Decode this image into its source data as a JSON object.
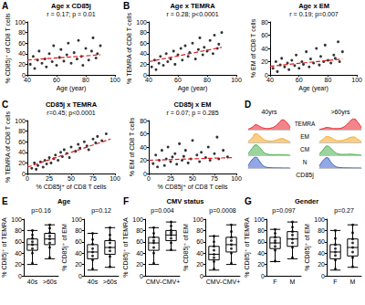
{
  "chart_data": [
    {
      "type": "scatter",
      "panel": "A",
      "title": "Age x CD85j",
      "subtitle": "r = 0.17; p = 0.01",
      "x_label": "Age (year)",
      "y_label": "% CD85j⁺ of CD8 T cells",
      "xlim": [
        40,
        100
      ],
      "xticks": [
        40,
        60,
        80,
        100
      ],
      "ylim": [
        0,
        100
      ],
      "yticks": [
        0,
        20,
        40,
        60,
        80,
        100
      ],
      "grid": false,
      "color": "#000000",
      "x": [
        42,
        44,
        45,
        47,
        48,
        50,
        52,
        53,
        55,
        57,
        58,
        60,
        62,
        63,
        65,
        67,
        68,
        70,
        72,
        74,
        75,
        77,
        78,
        80,
        82,
        84,
        85,
        87,
        88,
        90
      ],
      "values": [
        20,
        35,
        12,
        28,
        45,
        22,
        30,
        15,
        40,
        25,
        55,
        18,
        33,
        48,
        26,
        38,
        60,
        22,
        42,
        30,
        65,
        35,
        18,
        50,
        28,
        45,
        70,
        32,
        40,
        55
      ],
      "fit": {
        "x": [
          40,
          90
        ],
        "y": [
          28,
          38
        ],
        "color": "#e31a1c",
        "line_style": "dashed"
      }
    },
    {
      "type": "scatter",
      "panel": "B",
      "title": "Age x TEMRA",
      "subtitle": "r = 0.28; p<0.0001",
      "x_label": "Age (year)",
      "y_label": "% TEMRA of CD8 T cells",
      "xlim": [
        40,
        100
      ],
      "xticks": [
        40,
        60,
        80,
        100
      ],
      "ylim": [
        0,
        100
      ],
      "yticks": [
        0,
        20,
        40,
        60,
        80,
        100
      ],
      "grid": false,
      "color": "#000000",
      "x": [
        42,
        44,
        45,
        47,
        48,
        50,
        52,
        53,
        55,
        57,
        58,
        60,
        62,
        63,
        65,
        67,
        68,
        70,
        72,
        74,
        75,
        77,
        78,
        80,
        82,
        84,
        85,
        87,
        88,
        90
      ],
      "values": [
        15,
        28,
        10,
        22,
        35,
        18,
        40,
        25,
        30,
        45,
        20,
        38,
        50,
        28,
        55,
        35,
        42,
        60,
        30,
        48,
        70,
        38,
        52,
        45,
        65,
        40,
        75,
        50,
        58,
        80
      ],
      "fit": {
        "x": [
          40,
          90
        ],
        "y": [
          25,
          52
        ],
        "color": "#e31a1c",
        "line_style": "dashed"
      }
    },
    {
      "type": "scatter",
      "title": "Age x EM",
      "subtitle": "r = 0.19; p=0.007",
      "x_label": "Age (year)",
      "y_label": "% EM of CD8 T cells",
      "xlim": [
        40,
        100
      ],
      "xticks": [
        40,
        60,
        80,
        100
      ],
      "ylim": [
        0,
        80
      ],
      "yticks": [
        0,
        20,
        40,
        60,
        80
      ],
      "grid": false,
      "color": "#000000",
      "x": [
        42,
        44,
        45,
        47,
        48,
        50,
        52,
        53,
        55,
        57,
        58,
        60,
        62,
        63,
        65,
        67,
        68,
        70,
        72,
        74,
        75,
        77,
        78,
        80,
        82,
        84,
        85,
        87,
        88,
        90
      ],
      "values": [
        10,
        20,
        5,
        15,
        25,
        12,
        18,
        8,
        22,
        14,
        30,
        10,
        20,
        16,
        35,
        12,
        24,
        18,
        40,
        15,
        28,
        20,
        45,
        22,
        18,
        30,
        25,
        50,
        20,
        35
      ],
      "fit": {
        "x": [
          40,
          90
        ],
        "y": [
          13,
          24
        ],
        "color": "#e31a1c",
        "line_style": "dashed"
      }
    },
    {
      "type": "scatter",
      "panel": "C",
      "title": "CD85j x TEMRA",
      "subtitle": "r=0.45; p<0.0001",
      "x_label": "% CD85j⁺ of CD8 T cells",
      "y_label": "% TEMRA of CD8 T cells",
      "xlim": [
        0,
        100
      ],
      "xticks": [
        0,
        25,
        50,
        75,
        100
      ],
      "ylim": [
        0,
        100
      ],
      "yticks": [
        0,
        20,
        40,
        60,
        80,
        100
      ],
      "grid": false,
      "color": "#000000",
      "x": [
        5,
        8,
        10,
        12,
        15,
        18,
        20,
        22,
        25,
        27,
        30,
        32,
        35,
        38,
        40,
        42,
        45,
        48,
        50,
        55,
        58,
        60,
        65,
        68,
        70,
        75,
        78,
        80,
        85,
        90
      ],
      "values": [
        10,
        20,
        8,
        15,
        22,
        12,
        25,
        18,
        30,
        20,
        28,
        35,
        25,
        40,
        32,
        45,
        38,
        30,
        50,
        42,
        55,
        48,
        60,
        52,
        45,
        65,
        58,
        70,
        62,
        75
      ],
      "fit": {
        "x": [
          0,
          95
        ],
        "y": [
          12,
          65
        ],
        "color": "#e31a1c",
        "line_style": "dashed"
      }
    },
    {
      "type": "scatter",
      "title": "CD85j x EM",
      "subtitle": "r = 0.07; p = 0.285",
      "x_label": "% CD85j⁺ of CD8 T cells",
      "y_label": "% EM of CD8 T cells",
      "xlim": [
        0,
        100
      ],
      "xticks": [
        0,
        25,
        50,
        75,
        100
      ],
      "ylim": [
        0,
        80
      ],
      "yticks": [
        0,
        20,
        40,
        60,
        80
      ],
      "grid": false,
      "color": "#000000",
      "x": [
        5,
        8,
        10,
        12,
        15,
        18,
        20,
        22,
        25,
        27,
        30,
        32,
        35,
        38,
        40,
        42,
        45,
        48,
        50,
        55,
        58,
        60,
        65,
        68,
        70,
        75,
        78,
        80,
        85,
        90
      ],
      "values": [
        15,
        28,
        10,
        20,
        35,
        12,
        22,
        40,
        18,
        25,
        30,
        14,
        45,
        20,
        26,
        35,
        16,
        22,
        50,
        28,
        18,
        32,
        24,
        40,
        20,
        30,
        55,
        22,
        35,
        25
      ],
      "fit": {
        "x": [
          0,
          95
        ],
        "y": [
          20,
          24
        ],
        "color": "#e31a1c",
        "line_style": "dashed"
      }
    },
    {
      "type": "line",
      "panel": "D",
      "x_label": "CD85j",
      "tick_labels": false,
      "grid": false,
      "ylim": [
        0,
        100
      ],
      "categories": [
        null,
        null,
        null,
        null,
        null,
        null,
        null,
        null,
        null,
        null,
        null,
        null
      ],
      "subplots": [
        {
          "title": "40yrs",
          "series": [
            {
              "name": "TEMRA",
              "color": "#e8202a",
              "values": [
                5,
                20,
                45,
                30,
                15,
                10,
                15,
                30,
                60,
                90,
                70,
                20
              ]
            },
            {
              "name": "EM",
              "color": "#f5a623",
              "values": [
                10,
                40,
                80,
                60,
                30,
                15,
                12,
                18,
                30,
                35,
                20,
                5
              ]
            },
            {
              "name": "CM",
              "color": "#4caf50",
              "values": [
                15,
                60,
                95,
                70,
                30,
                10,
                5,
                5,
                6,
                5,
                3,
                1
              ]
            },
            {
              "name": "N",
              "color": "#3a5fcd",
              "values": [
                20,
                75,
                100,
                60,
                20,
                6,
                3,
                2,
                2,
                1,
                1,
                0
              ]
            }
          ]
        },
        {
          "title": ">60yrs",
          "series": [
            {
              "name": "TEMRA",
              "color": "#e8202a",
              "values": [
                3,
                10,
                20,
                15,
                10,
                10,
                18,
                40,
                75,
                100,
                70,
                20
              ]
            },
            {
              "name": "EM",
              "color": "#f5a623",
              "values": [
                8,
                30,
                55,
                45,
                25,
                15,
                18,
                30,
                45,
                50,
                30,
                8
              ]
            },
            {
              "name": "CM",
              "color": "#4caf50",
              "values": [
                12,
                50,
                85,
                65,
                30,
                12,
                8,
                8,
                10,
                8,
                4,
                1
              ]
            },
            {
              "name": "N",
              "color": "#3a5fcd",
              "values": [
                18,
                70,
                95,
                55,
                20,
                6,
                3,
                2,
                2,
                1,
                1,
                0
              ]
            }
          ]
        }
      ]
    },
    {
      "type": "boxplot",
      "panel": "E",
      "title": "Age",
      "categories": [
        "40s",
        ">60s"
      ],
      "ylim": [
        0,
        100
      ],
      "yticks": [
        0,
        20,
        40,
        60,
        80,
        100
      ],
      "grid": false,
      "color": "#000000",
      "subplots": [
        {
          "subtitle": "p=0.16",
          "y_label": "% CD85j⁺ of TEMRA",
          "boxes": [
            [
              20,
              45,
              55,
              65,
              80
            ],
            [
              30,
              55,
              65,
              75,
              90
            ]
          ],
          "points": [
            [
              22,
              40,
              48,
              55,
              60,
              66,
              72,
              80
            ],
            [
              32,
              50,
              58,
              65,
              70,
              76,
              84,
              90
            ]
          ]
        },
        {
          "subtitle": "p=0.12",
          "y_label": "% CD85j⁺ of EM",
          "boxes": [
            [
              10,
              30,
              42,
              55,
              75
            ],
            [
              15,
              38,
              50,
              62,
              85
            ]
          ],
          "points": [
            [
              12,
              28,
              35,
              42,
              48,
              56,
              64,
              75
            ],
            [
              16,
              34,
              44,
              50,
              58,
              64,
              72,
              85
            ]
          ]
        }
      ]
    },
    {
      "type": "boxplot",
      "panel": "F",
      "title": "CMV status",
      "categories": [
        "CMV-",
        "CMV+"
      ],
      "ylim": [
        0,
        100
      ],
      "yticks": [
        0,
        20,
        40,
        60,
        80,
        100
      ],
      "grid": false,
      "color": "#000000",
      "subplots": [
        {
          "subtitle": "p=0.004",
          "y_label": "% CD85j⁺ of TEMRA",
          "boxes": [
            [
              20,
              45,
              58,
              68,
              85
            ],
            [
              45,
              62,
              72,
              80,
              95
            ]
          ],
          "points": [
            [
              22,
              40,
              50,
              58,
              62,
              68,
              75,
              85
            ],
            [
              46,
              58,
              66,
              72,
              76,
              80,
              88,
              95
            ]
          ]
        },
        {
          "subtitle": "p=0.0008",
          "y_label": "% CD85j⁺ of EM",
          "boxes": [
            [
              10,
              28,
              38,
              52,
              70
            ],
            [
              20,
              42,
              55,
              68,
              90
            ]
          ],
          "points": [
            [
              12,
              25,
              32,
              38,
              45,
              52,
              60,
              70
            ],
            [
              22,
              40,
              48,
              55,
              62,
              68,
              78,
              90
            ]
          ]
        }
      ]
    },
    {
      "type": "boxplot",
      "panel": "G",
      "title": "Gender",
      "categories": [
        "F",
        "M"
      ],
      "ylim": [
        0,
        100
      ],
      "yticks": [
        0,
        20,
        40,
        60,
        80,
        100
      ],
      "grid": false,
      "color": "#000000",
      "subplots": [
        {
          "subtitle": "p=0.097",
          "y_label": "% CD85j⁺ of TEMRA",
          "boxes": [
            [
              25,
              48,
              58,
              68,
              82
            ],
            [
              30,
              52,
              65,
              78,
              95
            ]
          ],
          "points": [
            [
              26,
              45,
              52,
              58,
              62,
              68,
              75,
              82
            ],
            [
              32,
              50,
              58,
              65,
              72,
              78,
              86,
              95
            ]
          ]
        },
        {
          "subtitle": "p=0.27",
          "y_label": "% CD85j⁺ of EM",
          "boxes": [
            [
              10,
              30,
              42,
              55,
              80
            ],
            [
              15,
              35,
              50,
              65,
              90
            ]
          ],
          "points": [
            [
              12,
              28,
              36,
              42,
              48,
              55,
              66,
              80
            ],
            [
              16,
              32,
              42,
              50,
              58,
              65,
              76,
              90
            ]
          ]
        }
      ]
    }
  ]
}
